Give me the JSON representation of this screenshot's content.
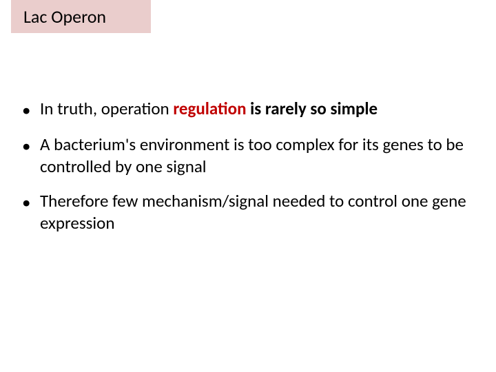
{
  "title": "Lac Operon",
  "bullets": [
    {
      "prefix": "In truth, operation ",
      "emphasized_red": "regulation",
      "emphasized_rest": " is rarely so simple"
    },
    {
      "text": "A bacterium's environment is too complex for its genes to be controlled by one signal"
    },
    {
      "text": "Therefore few mechanism/signal needed to control one gene expression"
    }
  ],
  "colors": {
    "title_bg": "#eacdcc",
    "red_text": "#c00000",
    "body_text": "#000000",
    "background": "#ffffff"
  },
  "typography": {
    "title_fontsize": 26,
    "body_fontsize": 25,
    "font_family": "Calibri"
  }
}
